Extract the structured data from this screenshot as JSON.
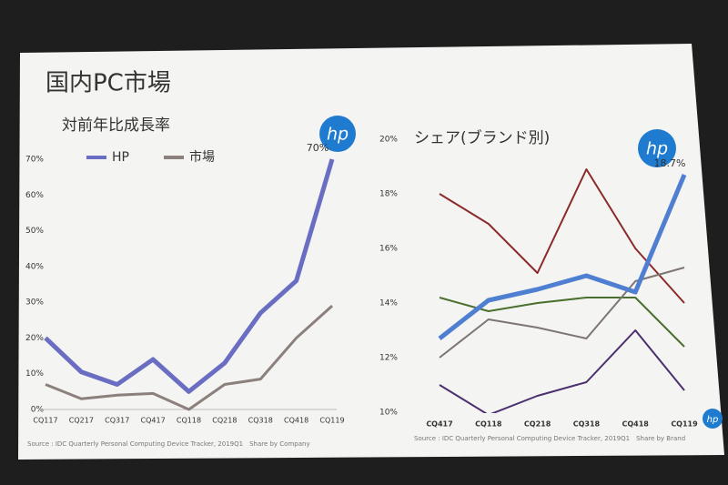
{
  "title": "国内PC市場",
  "logo": "hp",
  "chart_data": [
    {
      "type": "line",
      "title": "対前年比成長率",
      "categories": [
        "CQ117",
        "CQ217",
        "CQ317",
        "CQ417",
        "CQ118",
        "CQ218",
        "CQ318",
        "CQ418",
        "CQ119"
      ],
      "series": [
        {
          "name": "HP",
          "color": "#6a6ec2",
          "values": [
            20,
            10.5,
            7,
            14,
            5,
            13,
            27,
            36,
            70
          ],
          "value_labels": [
            null,
            null,
            null,
            null,
            null,
            null,
            null,
            null,
            "70%"
          ]
        },
        {
          "name": "市場",
          "color": "#8c807d",
          "values": [
            7,
            3,
            4,
            4.5,
            0,
            7,
            8.5,
            20,
            29
          ]
        }
      ],
      "ylim": [
        0,
        70
      ],
      "yticks": [
        {
          "value": 0,
          "label": "0%"
        },
        {
          "value": 10,
          "label": "10%"
        },
        {
          "value": 20,
          "label": "20%"
        },
        {
          "value": 30,
          "label": "30%"
        },
        {
          "value": 40,
          "label": "40%"
        },
        {
          "value": 50,
          "label": "50%"
        },
        {
          "value": 60,
          "label": "60%"
        },
        {
          "value": 70,
          "label": "70%"
        }
      ],
      "source": "Source : IDC Quarterly Personal Computing Device Tracker, 2019Q1　Share by Company"
    },
    {
      "type": "line",
      "title": "シェア(ブランド別)",
      "categories": [
        "CQ417",
        "CQ118",
        "CQ218",
        "CQ318",
        "CQ418",
        "CQ119"
      ],
      "series": [
        {
          "color": "#8b2a2a",
          "values": [
            18.0,
            16.9,
            15.1,
            18.9,
            16.0,
            14.0
          ]
        },
        {
          "color": "#4a6f2e",
          "values": [
            14.2,
            13.7,
            14.0,
            14.2,
            14.2,
            12.4
          ]
        },
        {
          "color": "#7d7574",
          "values": [
            12.0,
            13.4,
            13.1,
            12.7,
            14.8,
            15.3
          ]
        },
        {
          "color": "#4b2f6e",
          "values": [
            11.0,
            9.9,
            10.6,
            11.1,
            13.0,
            10.8
          ]
        },
        {
          "color": "#4f7fd0",
          "values": [
            12.7,
            14.1,
            14.5,
            15.0,
            14.4,
            18.7
          ],
          "value_labels": [
            null,
            null,
            null,
            null,
            null,
            "18.7%"
          ]
        }
      ],
      "ylim": [
        10,
        20
      ],
      "yticks": [
        {
          "value": 10,
          "label": "10%"
        },
        {
          "value": 12,
          "label": "12%"
        },
        {
          "value": 14,
          "label": "14%"
        },
        {
          "value": 16,
          "label": "16%"
        },
        {
          "value": 18,
          "label": "18%"
        },
        {
          "value": 20,
          "label": "20%"
        }
      ],
      "source": "Source : IDC Quarterly Personal Computing Device Tracker, 2019Q1　Share by Brand"
    }
  ]
}
